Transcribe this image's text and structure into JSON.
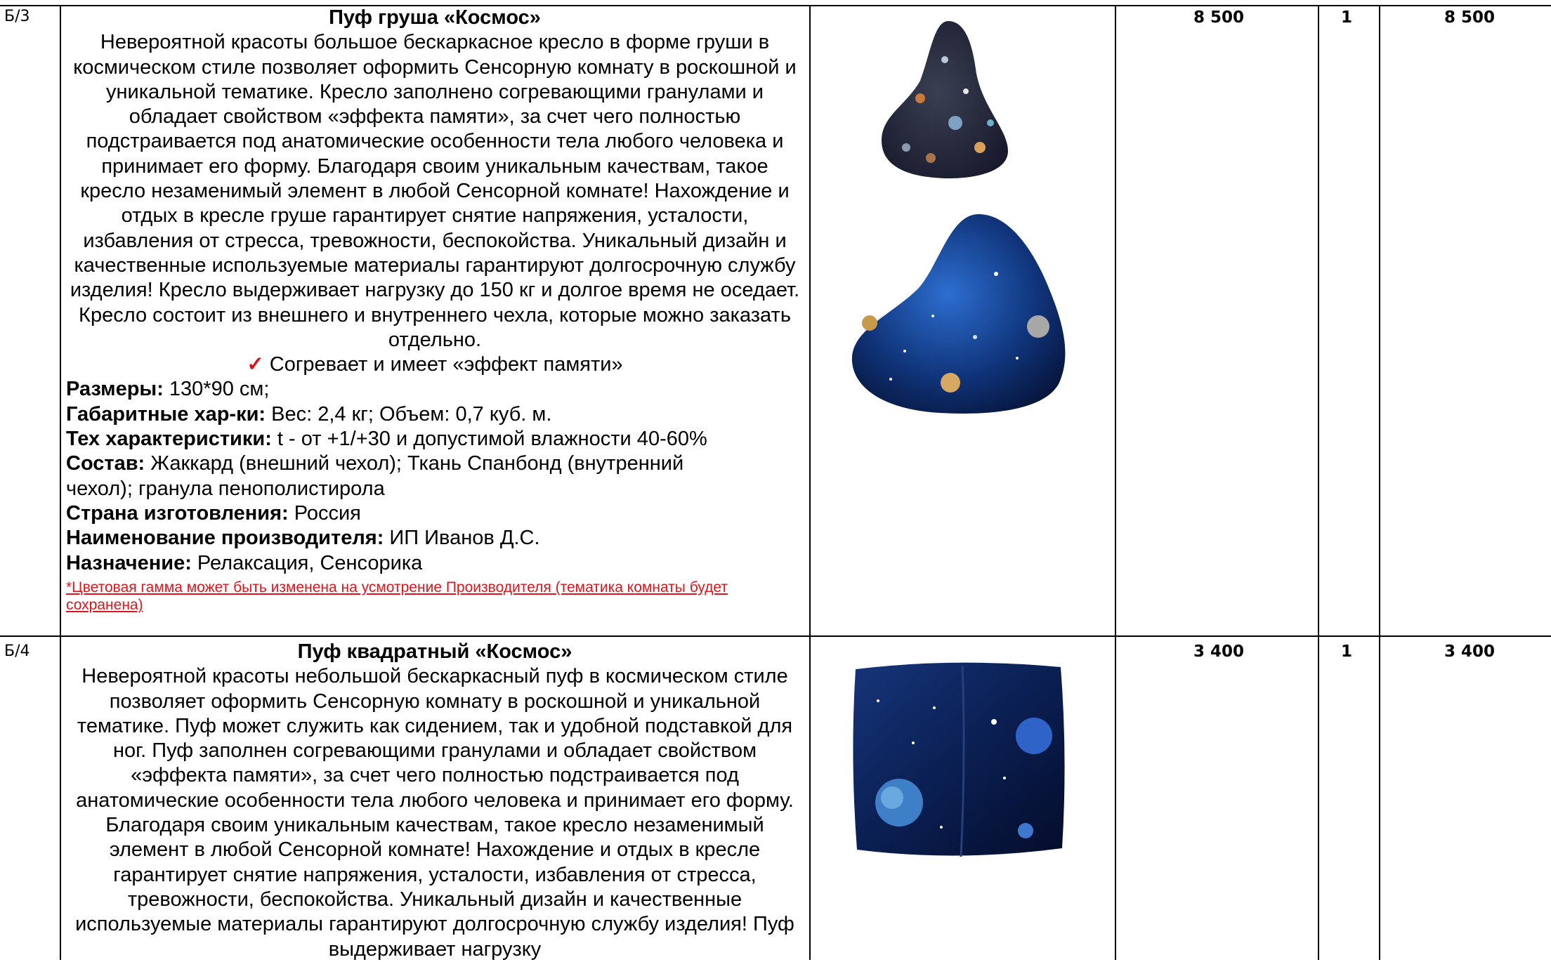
{
  "colors": {
    "border": "#000000",
    "note_red": "#e0141c",
    "check_red": "#d3121a"
  },
  "rows": [
    {
      "code": "Б/3",
      "title": "Пуф груша «Космос»",
      "description": "Невероятной красоты большое бескаркасное кресло в форме груши в космическом стиле позволяет оформить Сенсорную комнату в роскошной и уникальной тематике. Кресло заполнено согревающими гранулами и обладает свойством «эффекта памяти», за счет чего полностью подстраивается под анатомические особенности тела любого человека и принимает его форму. Благодаря своим уникальным качествам, такое кресло незаменимый элемент в любой Сенсорной комнате! Нахождение и отдых в кресле груше гарантирует снятие напряжения, усталости, избавления от стресса, тревожности, беспокойства. Уникальный дизайн и качественные используемые материалы гарантируют долгосрочную службу изделия! Кресло выдерживает нагрузку до 150 кг и долгое время не оседает. Кресло состоит из внешнего и внутреннего чехла, которые можно заказать отдельно.",
      "feature": "Согревает и имеет «эффект памяти»",
      "specs": [
        {
          "label": "Размеры:",
          "value": "130*90 см;"
        },
        {
          "label": "Габаритные хар-ки:",
          "value": "Вес: 2,4 кг; Объем: 0,7 куб. м."
        },
        {
          "label": "Тех характеристики:",
          "value": "t - от +1/+30 и допустимой влажности 40-60%"
        },
        {
          "label": "Состав:",
          "value": "Жаккард (внешний чехол); Ткань Спанбонд (внутренний чехол); гранула пенополистирола"
        },
        {
          "label": "Страна изготовления:",
          "value": "Россия"
        },
        {
          "label": "Наименование производителя:",
          "value": "ИП Иванов Д.С."
        },
        {
          "label": "Назначение:",
          "value": "Релаксация, Сенсорика"
        }
      ],
      "note": "*Цветовая гамма может быть изменена на усмотрение Производителя (тематика комнаты будет сохранена)",
      "price": "8 500",
      "quantity": "1",
      "total": "8 500"
    },
    {
      "code": "Б/4",
      "title": "Пуф квадратный «Космос»",
      "description": "Невероятной красоты небольшой бескаркасный пуф в космическом стиле позволяет оформить Сенсорную комнату в роскошной и уникальной тематике. Пуф может служить как сидением, так и удобной подставкой для ног. Пуф заполнен согревающими гранулами и обладает свойством «эффекта памяти», за счет чего полностью подстраивается под анатомические особенности тела любого человека и принимает его форму. Благодаря своим уникальным качествам, такое кресло незаменимый элемент в любой Сенсорной комнате! Нахождение и отдых в кресле гарантирует снятие напряжения, усталости, избавления от стресса, тревожности, беспокойства. Уникальный дизайн и качественные используемые материалы гарантируют долгосрочную службу изделия! Пуф выдерживает нагрузку",
      "price": "3 400",
      "quantity": "1",
      "total": "3 400"
    }
  ]
}
